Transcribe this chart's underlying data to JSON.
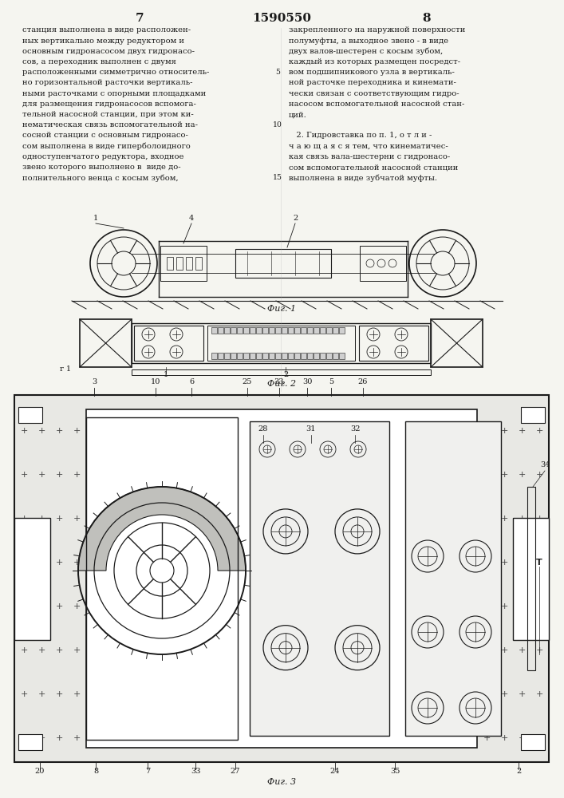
{
  "page_number_left": "7",
  "page_number_right": "8",
  "patent_number": "1590550",
  "background_color": "#f5f5f0",
  "text_color": "#1a1a1a",
  "left_column_text": [
    "станция выполнена в виде расположен-",
    "ных вертикально между редуктором и",
    "основным гидронасосом двух гидронасо-",
    "сов, а переходник выполнен с двумя",
    "расположенными симметрично относитель-",
    "но горизонтальной расточки вертикаль-",
    "ными расточками с опорными площадками",
    "для размещения гидронасосов вспомога-",
    "тельной насосной станции, при этом ки-",
    "нематическая связь вспомогательной на-",
    "сосной станции с основным гидронасо-",
    "сом выполнена в виде гиперболоидного",
    "одноступенчатого редуктора, входное",
    "звено которого выполнено в  виде до-",
    "полнительного венца с косым зубом,"
  ],
  "line_num_map": {
    "4": "5",
    "9": "10",
    "14": "15"
  },
  "right_column_text": [
    "закрепленного на наружной поверхности",
    "полумуфты, а выходное звено - в виде",
    "двух валов-шестерен с косым зубом,",
    "каждый из которых размещен посредст-",
    "вом подшипникового узла в вертикаль-",
    "ной расточке переходника и кинемати-",
    "чески связан с соответствующим гидро-",
    "насосом вспомогательной насосной стан-",
    "ций."
  ],
  "right_column_text2": [
    "   2. Гидровставка по п. 1, о т л и -",
    "ч а ю щ а я с я тем, что кинематичес-",
    "кая связь вала-шестерни с гидронасо-",
    "сом вспомогательной насосной станции",
    "выполнена в виде зубчатой муфты."
  ],
  "fig1_label": "Фиг. 1",
  "fig2_label": "Фиг. 2",
  "fig3_label": "Фиг. 3",
  "line_color": "#1a1a1a",
  "hatch_color": "#555555",
  "light_gray": "#d0d0d0",
  "medium_gray": "#888888",
  "fig_width": 707,
  "fig_height": 1000
}
